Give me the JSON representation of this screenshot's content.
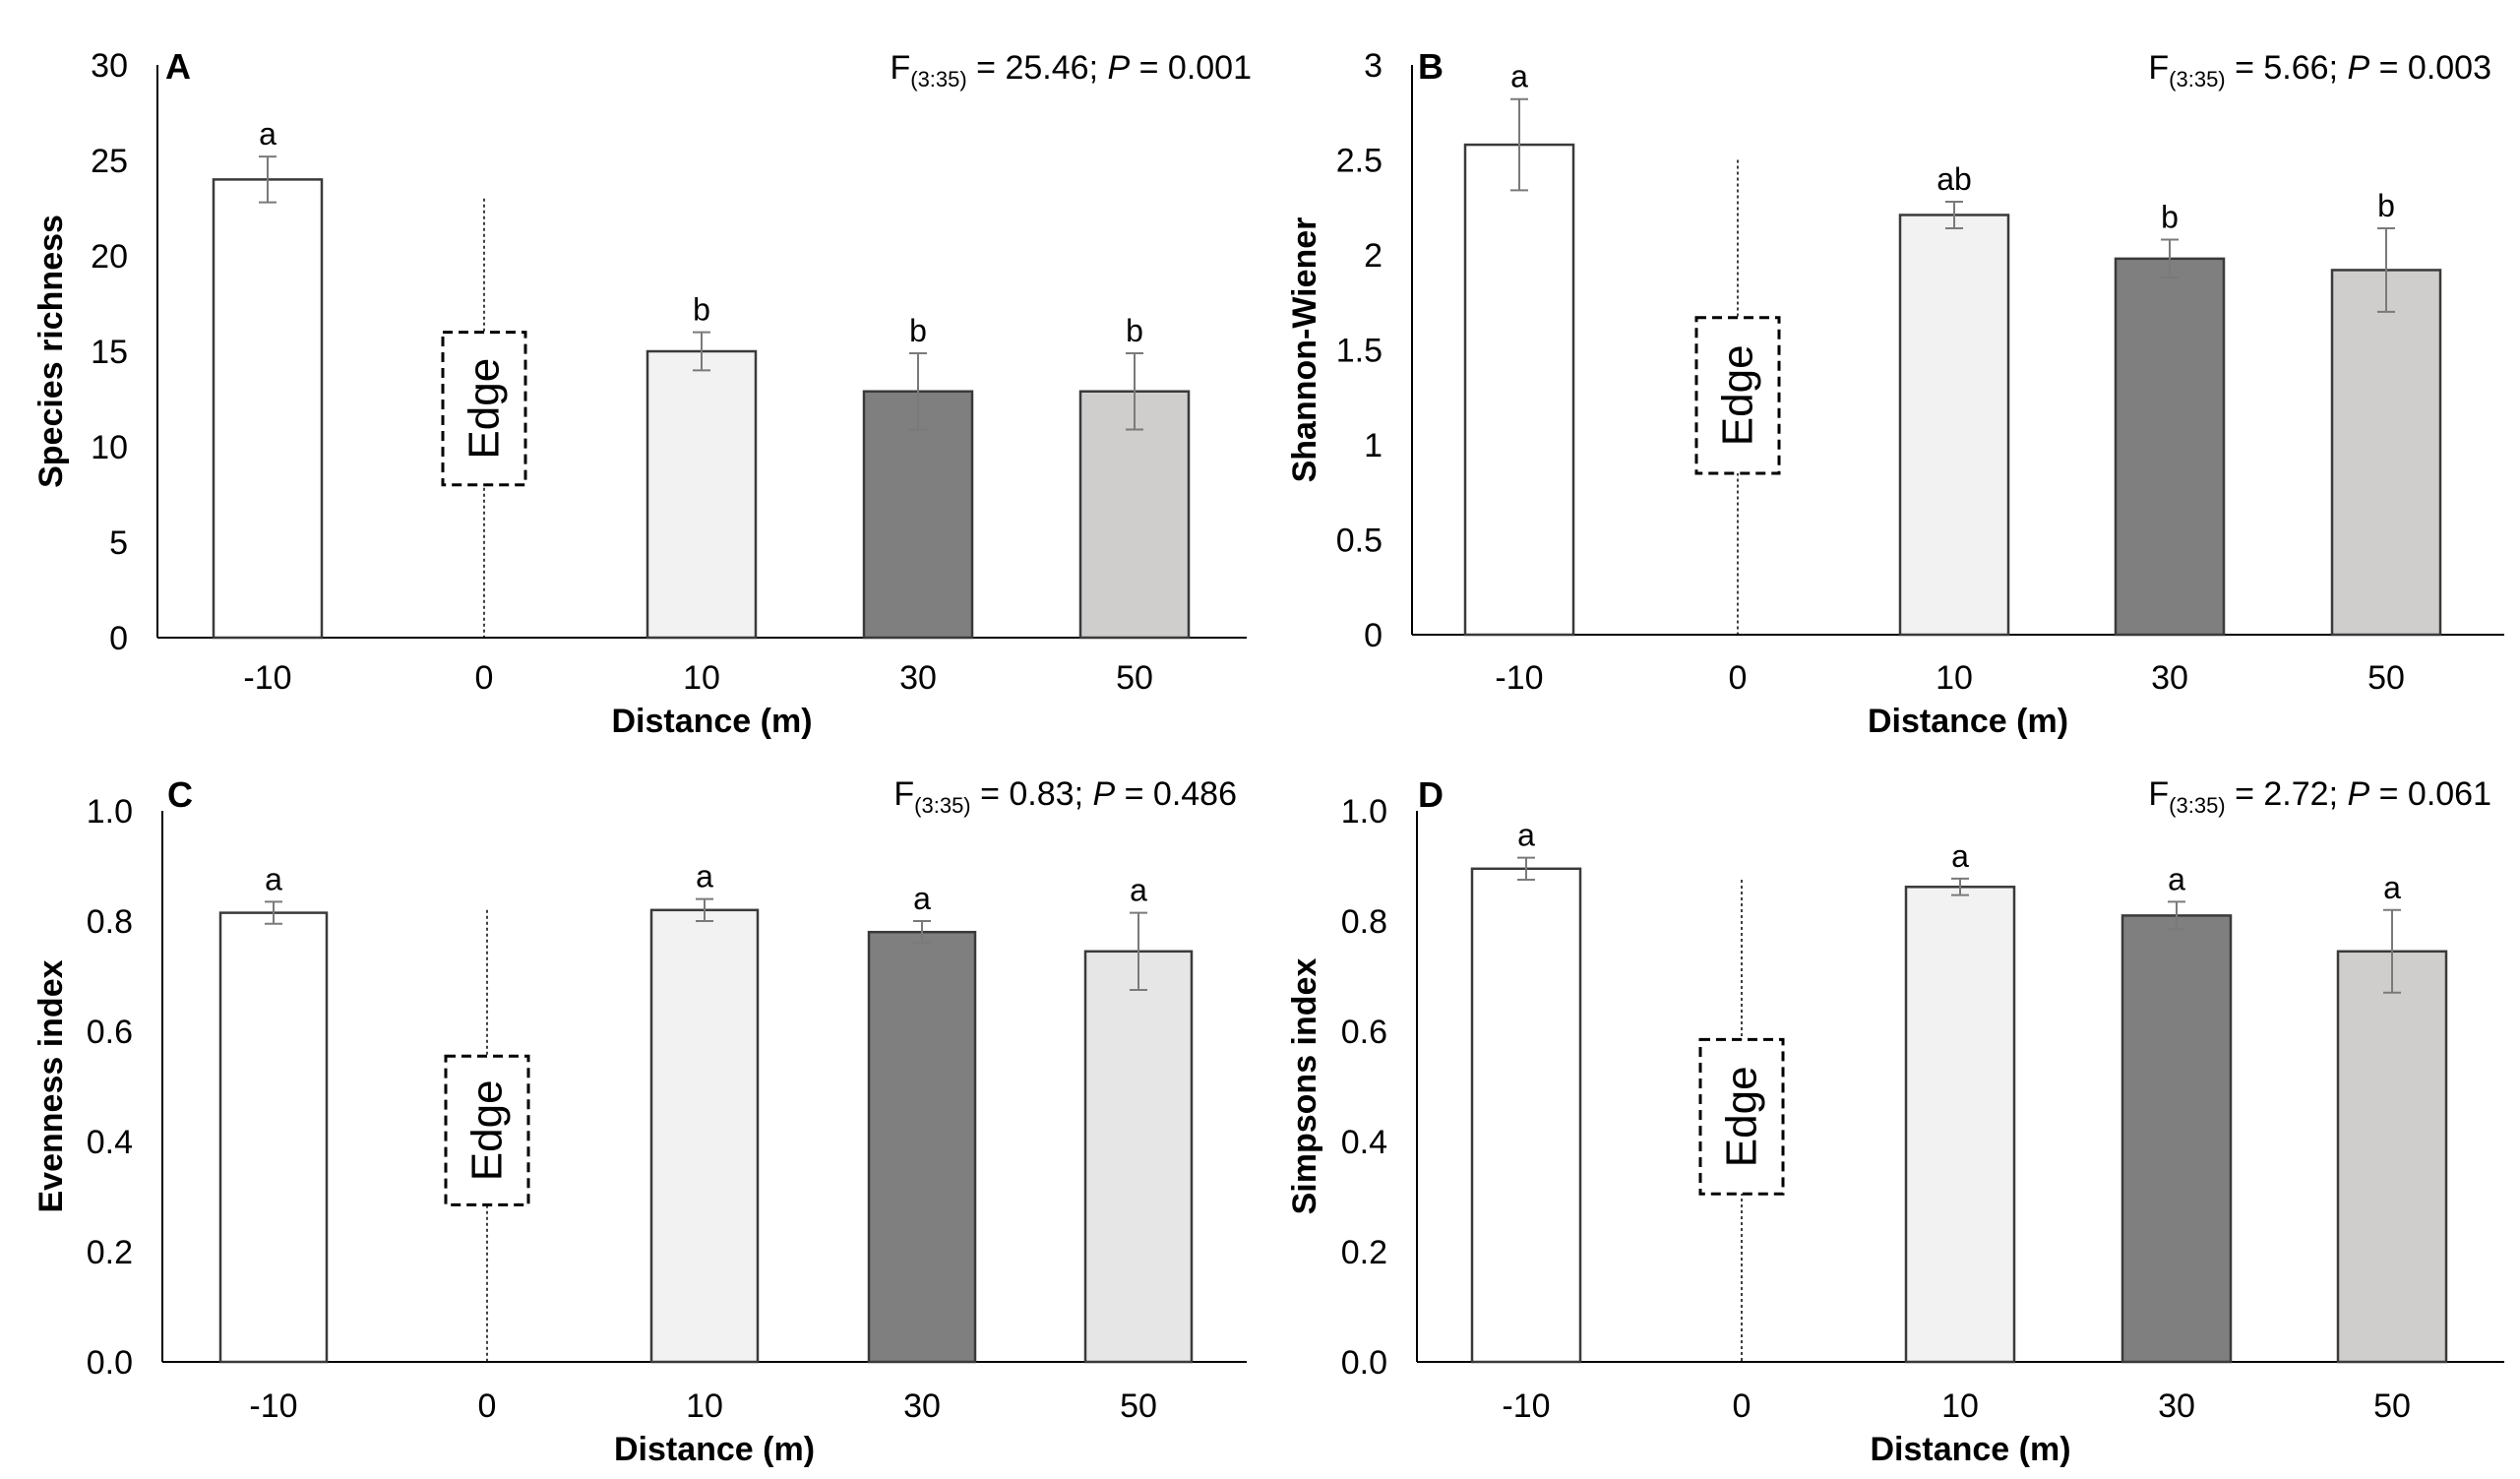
{
  "chart_data": [
    {
      "panel": "A",
      "type": "bar",
      "categories": [
        "-10",
        "0",
        "10",
        "30",
        "50"
      ],
      "values": [
        24.0,
        null,
        15.0,
        12.9,
        12.9
      ],
      "errors": [
        1.2,
        null,
        1.0,
        2.0,
        2.0
      ],
      "sig_letters": [
        "a",
        "",
        "b",
        "b",
        "b"
      ],
      "bar_colors": [
        "#ffffff",
        null,
        "#f2f2f2",
        "#7f7f7f",
        "#d0cecd"
      ],
      "edge_category": "0",
      "edge_label": "Edge",
      "edge_line_top": 23,
      "edge_box": [
        8,
        16
      ],
      "ylabel": "Species richness",
      "xlabel": "Distance (m)",
      "ylim": [
        0,
        30
      ],
      "yticks": [
        "0",
        "5",
        "10",
        "15",
        "20",
        "25",
        "30"
      ],
      "stat_F": "F",
      "stat_df": "(3:35)",
      "stat_eq": " = 25.46; ",
      "stat_P": "P",
      "stat_pval": " = 0.001"
    },
    {
      "panel": "B",
      "type": "bar",
      "categories": [
        "-10",
        "0",
        "10",
        "30",
        "50"
      ],
      "values": [
        2.58,
        null,
        2.21,
        1.98,
        1.92
      ],
      "errors": [
        0.24,
        null,
        0.07,
        0.1,
        0.22
      ],
      "sig_letters": [
        "a",
        "",
        "ab",
        "b",
        "b"
      ],
      "bar_colors": [
        "#ffffff",
        null,
        "#f2f2f2",
        "#7f7f7f",
        "#d0cecd"
      ],
      "edge_category": "0",
      "edge_label": "Edge",
      "edge_line_top": 2.5,
      "edge_box": [
        0.85,
        1.67
      ],
      "ylabel": "Shannon-Wiener",
      "xlabel": "Distance (m)",
      "ylim": [
        0,
        3
      ],
      "yticks": [
        "0",
        "0.5",
        "1",
        "1.5",
        "2",
        "2.5",
        "3"
      ],
      "stat_F": "F",
      "stat_df": "(3:35)",
      "stat_eq": " = 5.66; ",
      "stat_P": "P",
      "stat_pval": " = 0.003"
    },
    {
      "panel": "C",
      "type": "bar",
      "categories": [
        "-10",
        "0",
        "10",
        "30",
        "50"
      ],
      "values": [
        0.815,
        null,
        0.82,
        0.78,
        0.745
      ],
      "errors": [
        0.02,
        null,
        0.02,
        0.02,
        0.07
      ],
      "sig_letters": [
        "a",
        "",
        "a",
        "a",
        "a"
      ],
      "bar_colors": [
        "#ffffff",
        null,
        "#f2f2f2",
        "#7f7f7f",
        "#e6e6e6"
      ],
      "edge_category": "0",
      "edge_label": "Edge",
      "edge_line_top": 0.82,
      "edge_box": [
        0.285,
        0.555
      ],
      "ylabel": "Evenness index",
      "xlabel": "Distance (m)",
      "ylim": [
        0,
        1
      ],
      "yticks": [
        "0.0",
        "0.2",
        "0.4",
        "0.6",
        "0.8",
        "1.0"
      ],
      "stat_F": "F",
      "stat_df": "(3:35)",
      "stat_eq": " = 0.83; ",
      "stat_P": "P",
      "stat_pval": " = 0.486"
    },
    {
      "panel": "D",
      "type": "bar",
      "categories": [
        "-10",
        "0",
        "10",
        "30",
        "50"
      ],
      "values": [
        0.895,
        null,
        0.862,
        0.81,
        0.745
      ],
      "errors": [
        0.02,
        null,
        0.015,
        0.025,
        0.075
      ],
      "sig_letters": [
        "a",
        "",
        "a",
        "a",
        "a"
      ],
      "bar_colors": [
        "#ffffff",
        null,
        "#f2f2f2",
        "#7f7f7f",
        "#d0cecd"
      ],
      "edge_category": "0",
      "edge_label": "Edge",
      "edge_line_top": 0.875,
      "edge_box": [
        0.305,
        0.585
      ],
      "ylabel": "Simpsons index",
      "xlabel": "Distance (m)",
      "ylim": [
        0,
        1
      ],
      "yticks": [
        "0.0",
        "0.2",
        "0.4",
        "0.6",
        "0.8",
        "1.0"
      ],
      "stat_F": "F",
      "stat_df": "(3:35)",
      "stat_eq": " = 2.72; ",
      "stat_P": "P",
      "stat_pval": " = 0.061"
    }
  ]
}
